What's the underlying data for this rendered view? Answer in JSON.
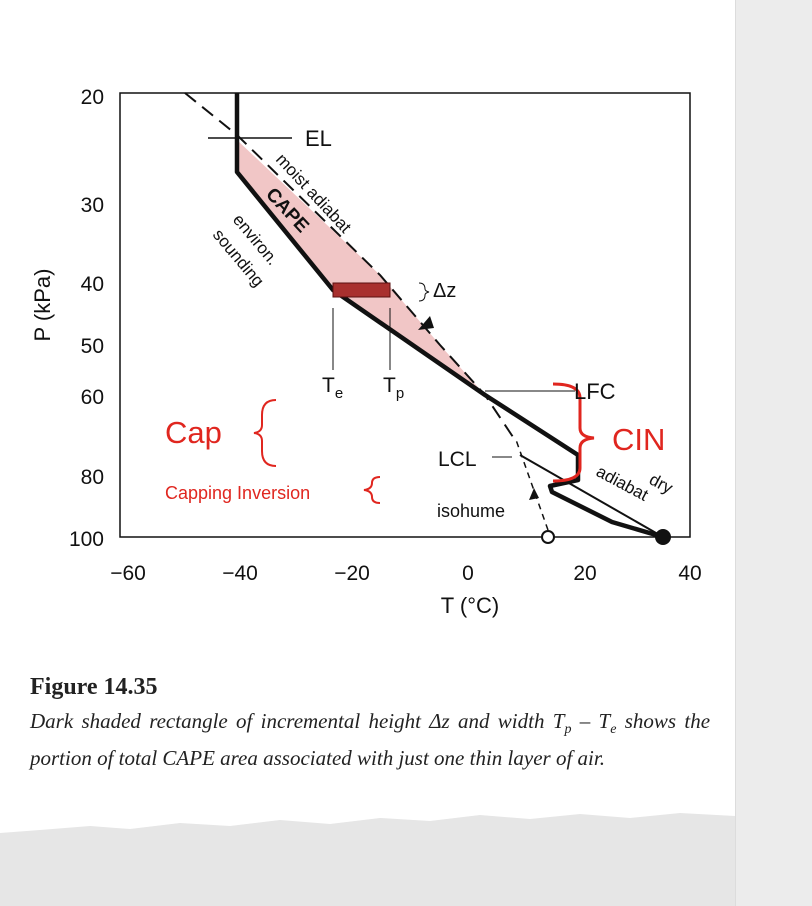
{
  "figure": {
    "axis": {
      "y_label": "P (kPa)",
      "x_label": "T (°C)",
      "y_ticks": [
        "20",
        "30",
        "40",
        "50",
        "60",
        "80",
        "100"
      ],
      "x_ticks": [
        "−60",
        "−40",
        "−20",
        "0",
        "20",
        "40"
      ]
    },
    "labels": {
      "el": "EL",
      "moist_adiabat": "moist adiabat",
      "cape": "CAPE",
      "environ_1": "environ.",
      "environ_2": "sounding",
      "delta_z": "Δz",
      "t_e": {
        "main": "T",
        "sub": "e"
      },
      "t_p": {
        "main": "T",
        "sub": "p"
      },
      "lfc": "LFC",
      "cin": "CIN",
      "cap": "Cap",
      "lcl": "LCL",
      "capping_inversion": "Capping Inversion",
      "isohume": "isohume",
      "dry_1": "dry",
      "dry_2": "adiabat"
    }
  },
  "caption": {
    "title": "Figure 14.35",
    "text_1": "Dark shaded rectangle of incremental height Δz and width ",
    "tp": {
      "main": "T",
      "sub": "p"
    },
    "minus": " – ",
    "te": {
      "main": "T",
      "sub": "e"
    },
    "text_2": " shows the portion of total CAPE area associated with just one thin layer of air."
  }
}
